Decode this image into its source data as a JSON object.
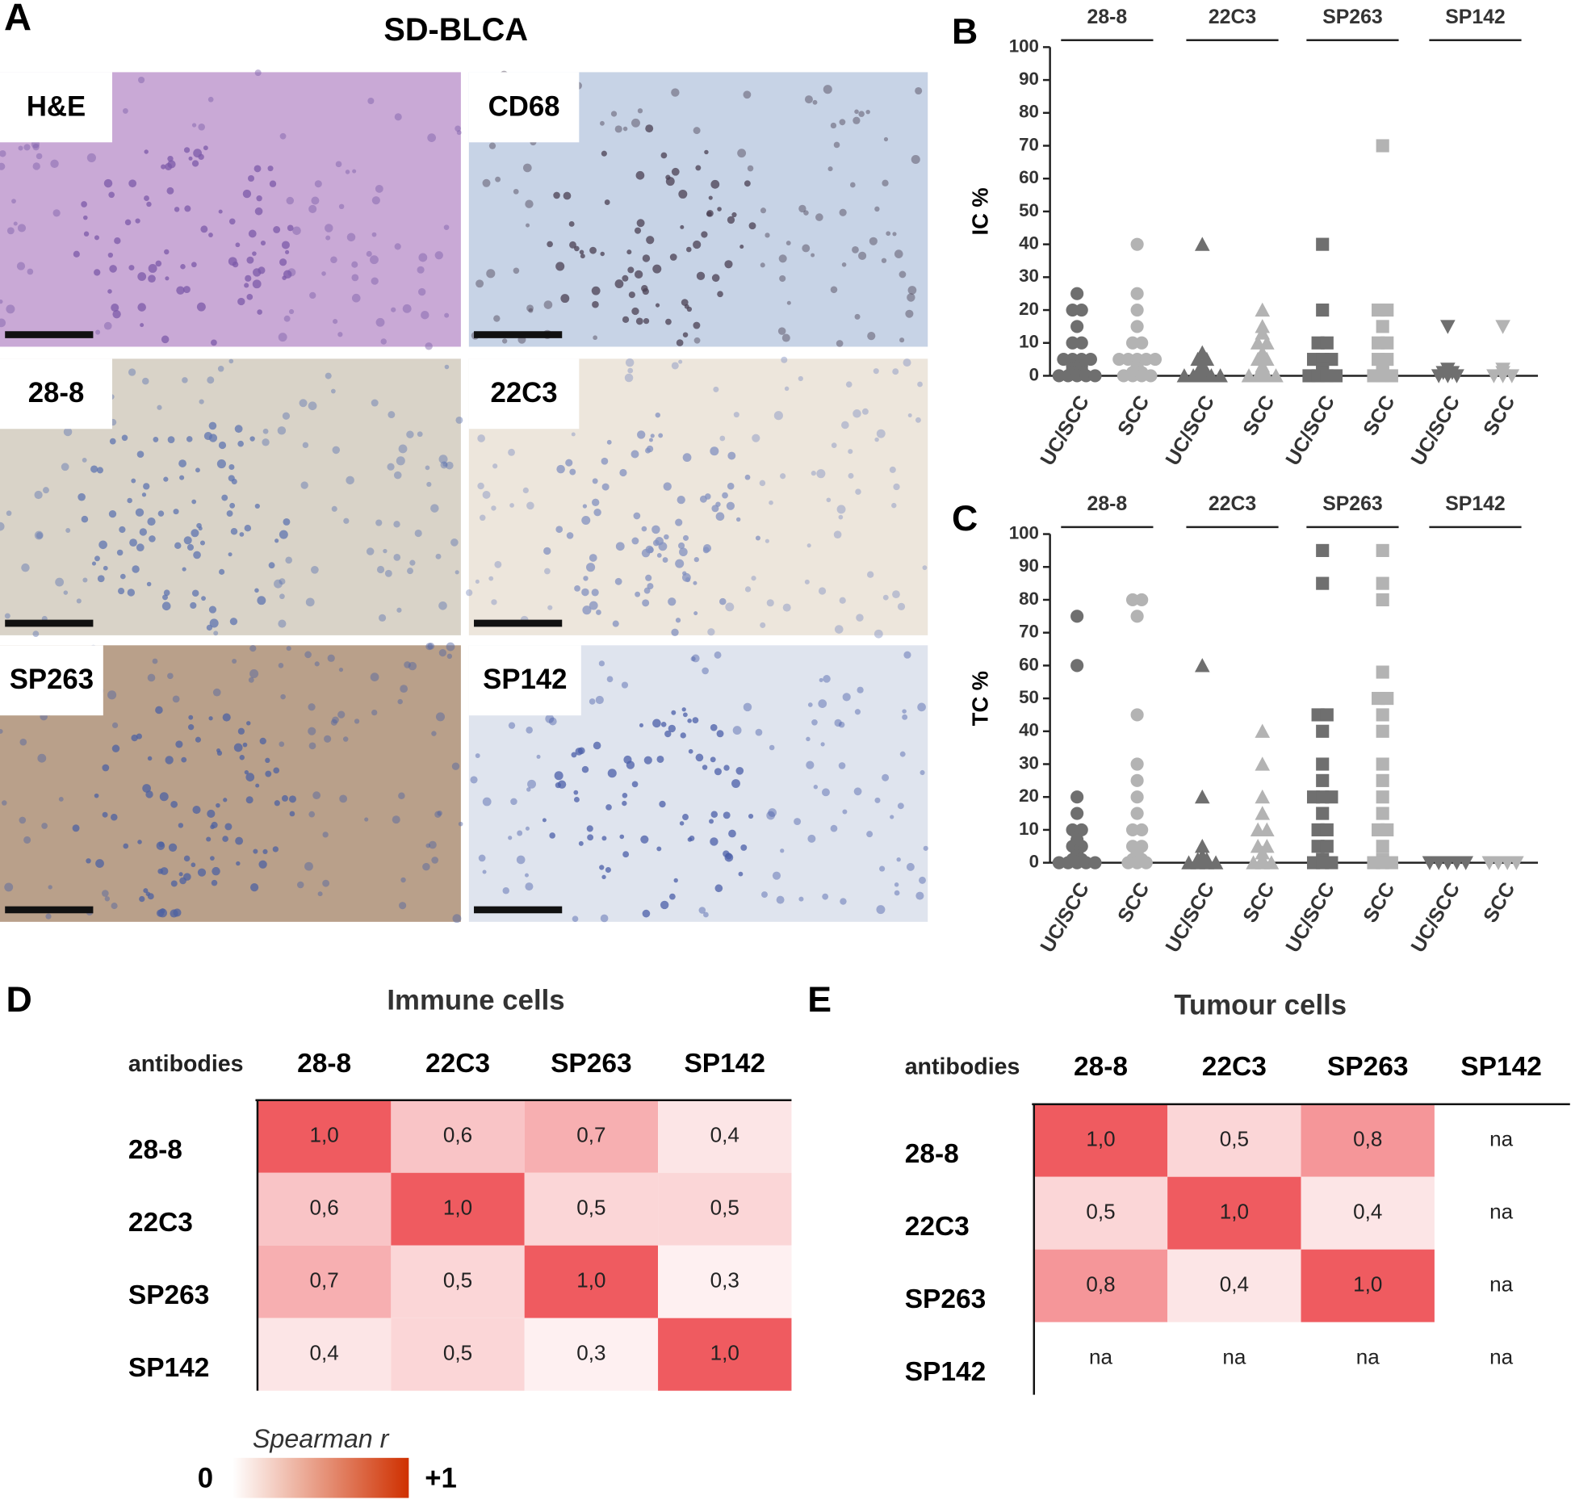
{
  "panel_a": {
    "label": "A",
    "title": "SD-BLCA",
    "images": [
      {
        "label": "H&E"
      },
      {
        "label": "CD68"
      },
      {
        "label": "28-8"
      },
      {
        "label": "22C3"
      },
      {
        "label": "SP263"
      },
      {
        "label": "SP142"
      }
    ]
  },
  "chart_data": [
    {
      "type": "strip",
      "panel_label": "B",
      "ylabel": "IC %",
      "groups": [
        "28-8",
        "22C3",
        "SP263",
        "SP142"
      ],
      "categories": [
        "UC/SCC",
        "SCC",
        "UC/SCC",
        "SCC",
        "UC/SCC",
        "SCC",
        "UC/SCC",
        "SCC"
      ],
      "colors": [
        "#6f6f6f",
        "#b3b3b3",
        "#6f6f6f",
        "#b3b3b3",
        "#6f6f6f",
        "#b3b3b3",
        "#6f6f6f",
        "#b3b3b3"
      ],
      "markers": [
        "circle",
        "triangle",
        "square",
        "triangle-down"
      ],
      "ylim": [
        0,
        100
      ],
      "yticks": [
        0,
        10,
        20,
        30,
        40,
        50,
        60,
        70,
        80,
        90,
        100
      ],
      "values": [
        [
          25,
          20,
          20,
          15,
          10,
          10,
          5,
          5,
          5,
          5,
          3,
          3,
          2,
          2,
          1,
          1,
          0,
          0,
          0,
          0,
          0
        ],
        [
          40,
          25,
          20,
          15,
          10,
          10,
          5,
          5,
          5,
          5,
          5,
          3,
          2,
          1,
          1,
          0,
          0,
          0,
          0
        ],
        [
          40,
          7,
          5,
          5,
          3,
          2,
          1,
          1,
          0,
          0,
          0,
          0,
          0
        ],
        [
          20,
          15,
          13,
          10,
          10,
          7,
          5,
          5,
          3,
          1,
          0,
          0,
          0,
          0
        ],
        [
          40,
          20,
          10,
          10,
          5,
          5,
          5,
          2,
          1,
          0,
          0,
          0,
          0
        ],
        [
          70,
          20,
          20,
          15,
          10,
          10,
          5,
          5,
          2,
          1,
          0,
          0,
          0
        ],
        [
          15,
          2,
          1,
          1,
          0,
          0,
          0
        ],
        [
          15,
          2,
          1,
          0,
          0,
          0
        ]
      ]
    },
    {
      "type": "strip",
      "panel_label": "C",
      "ylabel": "TC %",
      "groups": [
        "28-8",
        "22C3",
        "SP263",
        "SP142"
      ],
      "categories": [
        "UC/SCC",
        "SCC",
        "UC/SCC",
        "SCC",
        "UC/SCC",
        "SCC",
        "UC/SCC",
        "SCC"
      ],
      "colors": [
        "#6f6f6f",
        "#b3b3b3",
        "#6f6f6f",
        "#b3b3b3",
        "#6f6f6f",
        "#b3b3b3",
        "#6f6f6f",
        "#b3b3b3"
      ],
      "markers": [
        "circle",
        "triangle",
        "square",
        "triangle-down"
      ],
      "ylim": [
        0,
        100
      ],
      "yticks": [
        0,
        10,
        20,
        30,
        40,
        50,
        60,
        70,
        80,
        90,
        100
      ],
      "values": [
        [
          75,
          60,
          20,
          15,
          10,
          10,
          7,
          5,
          5,
          3,
          2,
          1,
          1,
          0,
          0,
          0,
          0,
          0
        ],
        [
          80,
          80,
          75,
          45,
          30,
          25,
          20,
          15,
          10,
          10,
          5,
          5,
          3,
          2,
          1,
          1,
          0,
          0,
          0
        ],
        [
          60,
          20,
          5,
          2,
          1,
          1,
          0,
          0,
          0,
          0
        ],
        [
          40,
          30,
          20,
          15,
          10,
          10,
          5,
          5,
          3,
          1,
          0,
          0,
          0
        ],
        [
          95,
          85,
          45,
          45,
          40,
          30,
          25,
          20,
          20,
          20,
          15,
          10,
          10,
          5,
          5,
          1,
          0,
          0,
          0
        ],
        [
          95,
          85,
          80,
          58,
          50,
          50,
          45,
          40,
          30,
          25,
          20,
          15,
          10,
          10,
          5,
          1,
          0,
          0,
          0
        ],
        [
          0,
          0,
          0,
          0,
          0
        ],
        [
          0,
          0,
          0,
          0
        ]
      ]
    }
  ],
  "heatmaps": [
    {
      "panel_label": "D",
      "title": "Immune cells",
      "corner_label": "antibodies",
      "columns": [
        "28-8",
        "22C3",
        "SP263",
        "SP142"
      ],
      "rows": [
        "28-8",
        "22C3",
        "SP263",
        "SP142"
      ],
      "values": [
        [
          1.0,
          0.6,
          0.7,
          0.4
        ],
        [
          0.6,
          1.0,
          0.5,
          0.5
        ],
        [
          0.7,
          0.5,
          1.0,
          0.3
        ],
        [
          0.4,
          0.5,
          0.3,
          1.0
        ]
      ],
      "value_labels": [
        [
          "1,0",
          "0,6",
          "0,7",
          "0,4"
        ],
        [
          "0,6",
          "1,0",
          "0,5",
          "0,5"
        ],
        [
          "0,7",
          "0,5",
          "1,0",
          "0,3"
        ],
        [
          "0,4",
          "0,5",
          "0,3",
          "1,0"
        ]
      ]
    },
    {
      "panel_label": "E",
      "title": "Tumour cells",
      "corner_label": "antibodies",
      "columns": [
        "28-8",
        "22C3",
        "SP263",
        "SP142"
      ],
      "rows": [
        "28-8",
        "22C3",
        "SP263",
        "SP142"
      ],
      "values": [
        [
          1.0,
          0.5,
          0.8,
          null
        ],
        [
          0.5,
          1.0,
          0.4,
          null
        ],
        [
          0.8,
          0.4,
          1.0,
          null
        ],
        [
          null,
          null,
          null,
          null
        ]
      ],
      "value_labels": [
        [
          "1,0",
          "0,5",
          "0,8",
          "na"
        ],
        [
          "0,5",
          "1,0",
          "0,4",
          "na"
        ],
        [
          "0,8",
          "0,4",
          "1,0",
          "na"
        ],
        [
          "na",
          "na",
          "na",
          "na"
        ]
      ]
    }
  ],
  "color_scale": {
    "title": "Spearman r",
    "range": [
      0,
      1
    ],
    "ticks": [
      0,
      {
        "value": 1,
        "label": "+1"
      }
    ],
    "cell_colors": [
      "#ffffff",
      "#ef5b60"
    ],
    "legend_colors": [
      "#ffffff",
      "#cf3000"
    ]
  }
}
